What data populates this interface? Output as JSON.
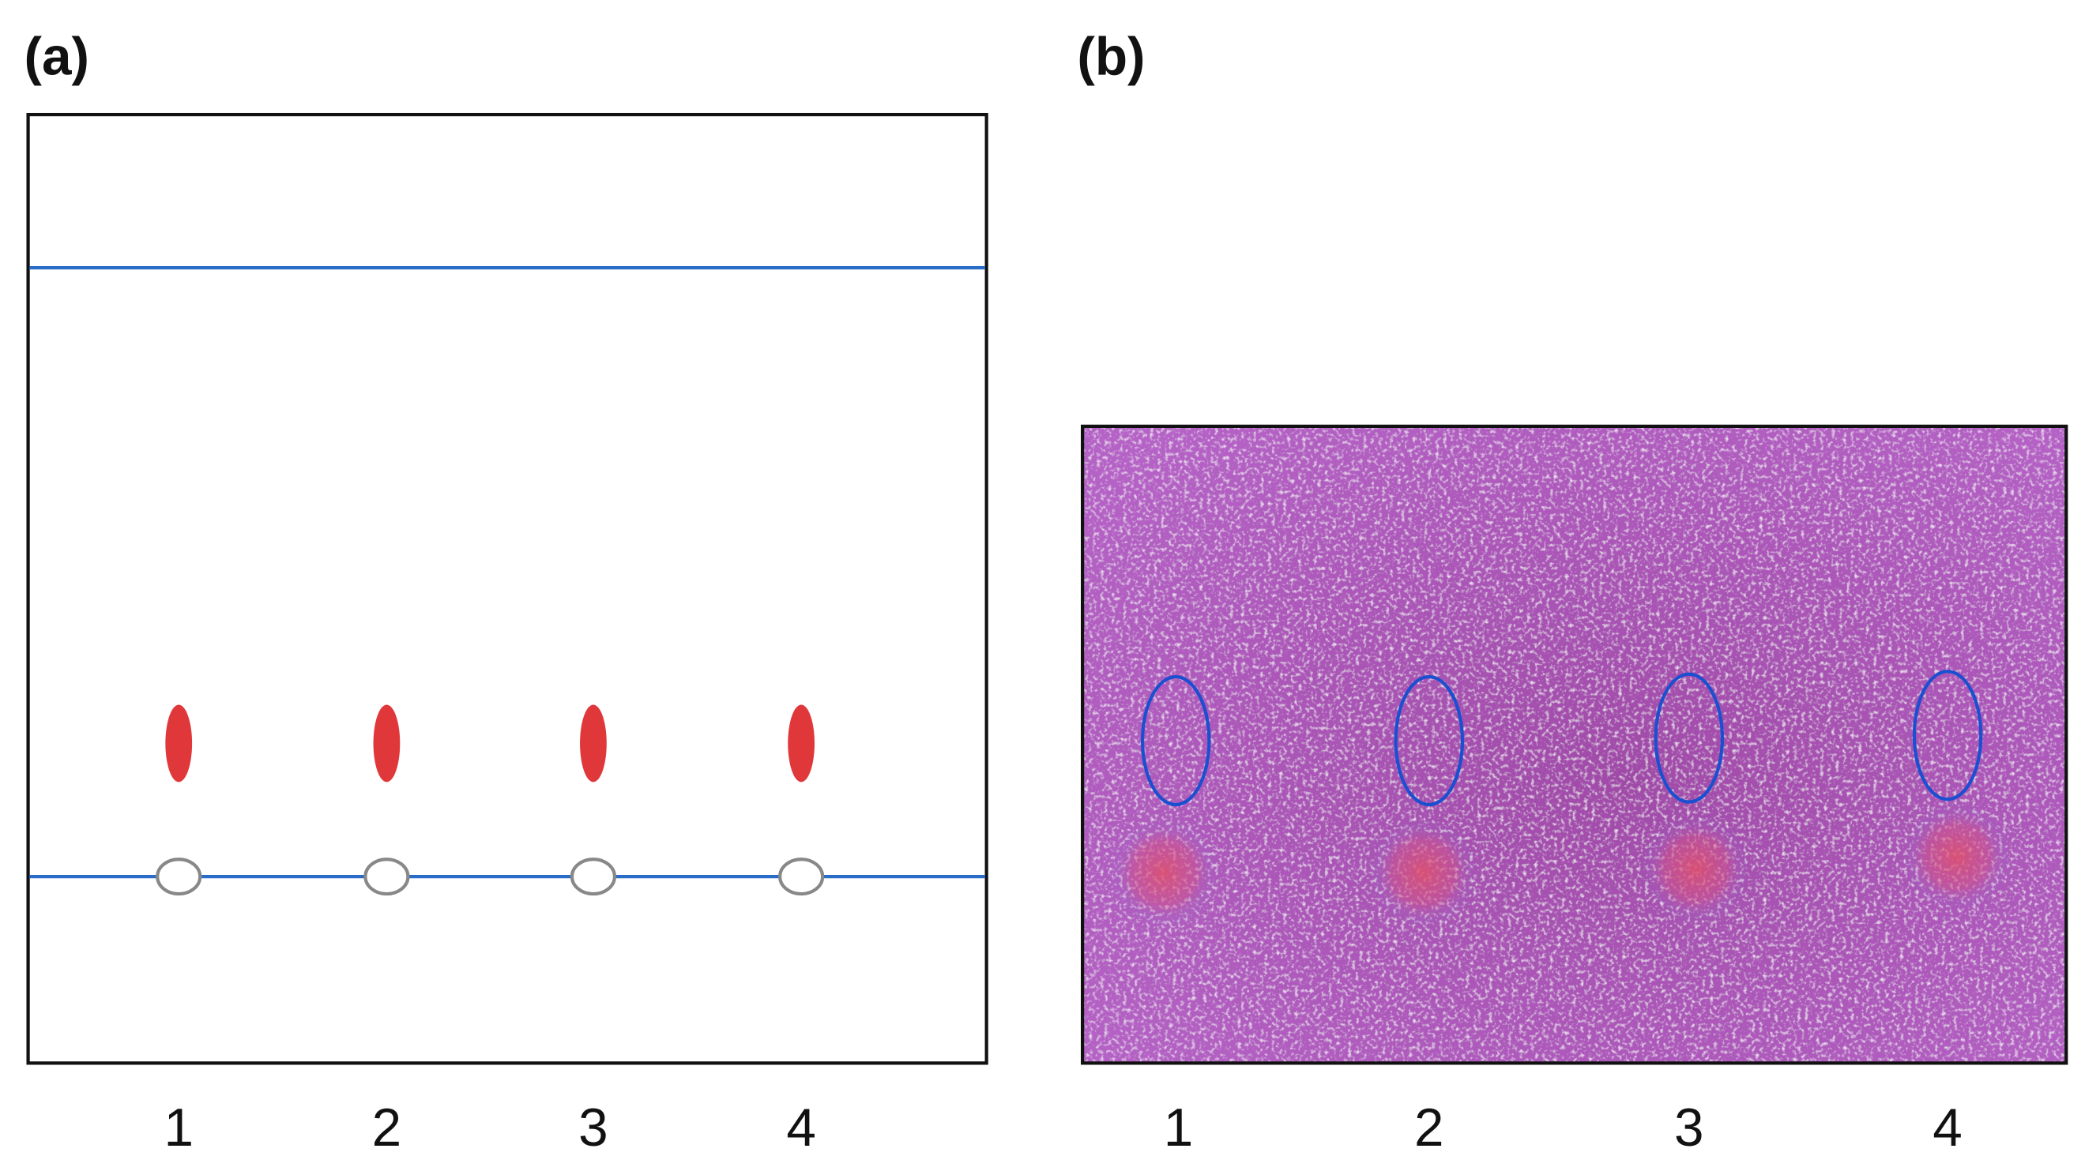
{
  "panels": [
    {
      "label": "(a)",
      "lanes": [
        "1",
        "2",
        "3",
        "4"
      ]
    },
    {
      "label": "(b)",
      "lanes": [
        "1",
        "2",
        "3",
        "4"
      ]
    }
  ]
}
